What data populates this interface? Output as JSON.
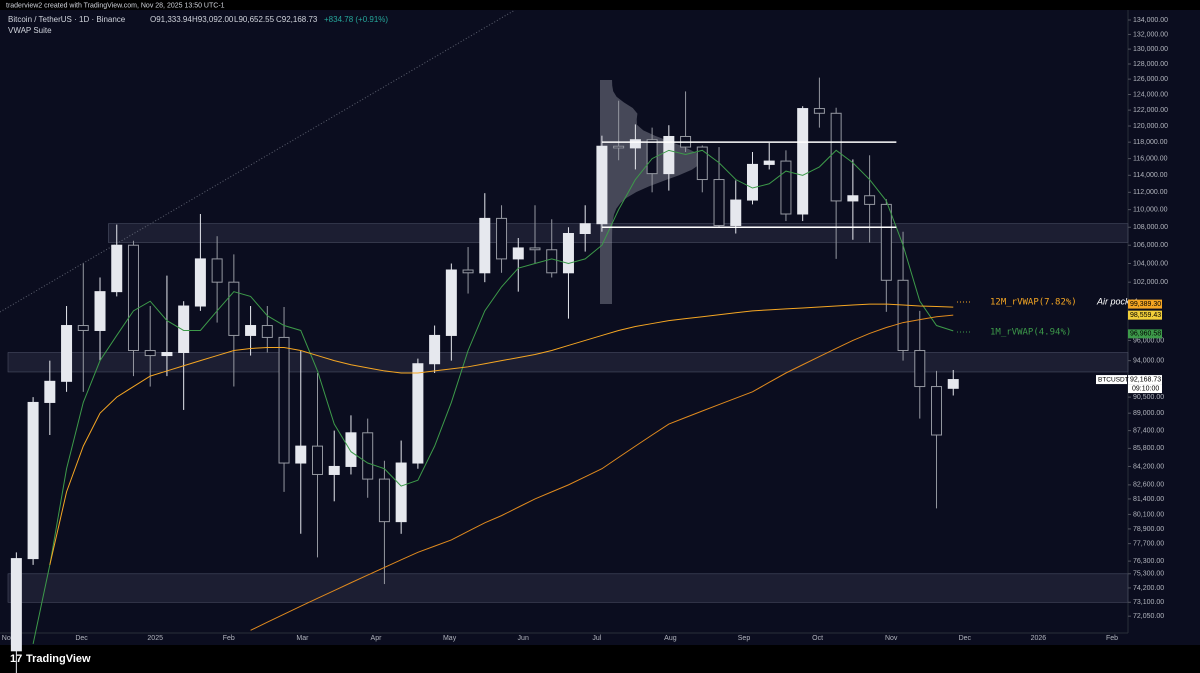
{
  "header": {
    "credit": "traderview2 created with TradingView.com, Nov 28, 2025 13:50 UTC-1",
    "symbol": "Bitcoin / TetherUS · 1D · Binance",
    "ohlc": [
      "O91,333.94",
      "H93,092.00",
      "L90,652.55",
      "C92,168.73",
      "+834.78 (+0.91%)"
    ],
    "indicator": "VWAP Suite"
  },
  "footer": {
    "logo": "TradingView"
  },
  "chart_data": {
    "type": "candlestick",
    "log_scale": true,
    "ylim": [
      70800,
      135400
    ],
    "up_color": "#e6e8ee",
    "down_color": "#9598a1",
    "yticks": [
      {
        "value": 134000,
        "label": "134,000.00"
      },
      {
        "value": 132000,
        "label": "132,000.00"
      },
      {
        "value": 130000,
        "label": "130,000.00"
      },
      {
        "value": 128000,
        "label": "128,000.00"
      },
      {
        "value": 126000,
        "label": "126,000.00"
      },
      {
        "value": 124000,
        "label": "124,000.00"
      },
      {
        "value": 122000,
        "label": "122,000.00"
      },
      {
        "value": 120000,
        "label": "120,000.00"
      },
      {
        "value": 118000,
        "label": "118,000.00"
      },
      {
        "value": 116000,
        "label": "116,000.00"
      },
      {
        "value": 114000,
        "label": "114,000.00"
      },
      {
        "value": 112000,
        "label": "112,000.00"
      },
      {
        "value": 110000,
        "label": "110,000.00"
      },
      {
        "value": 108000,
        "label": "108,000.00"
      },
      {
        "value": 106000,
        "label": "106,000.00"
      },
      {
        "value": 104000,
        "label": "104,000.00"
      },
      {
        "value": 102000,
        "label": "102,000.00"
      },
      {
        "value": 96000,
        "label": "96,000.00"
      },
      {
        "value": 94000,
        "label": "94,000.00"
      },
      {
        "value": 90500,
        "label": "90,500.00"
      },
      {
        "value": 89000,
        "label": "89,000.00"
      },
      {
        "value": 87400,
        "label": "87,400.00"
      },
      {
        "value": 85800,
        "label": "85,800.00"
      },
      {
        "value": 84200,
        "label": "84,200.00"
      },
      {
        "value": 82600,
        "label": "82,600.00"
      },
      {
        "value": 81400,
        "label": "81,400.00"
      },
      {
        "value": 80100,
        "label": "80,100.00"
      },
      {
        "value": 78900,
        "label": "78,900.00"
      },
      {
        "value": 77700,
        "label": "77,700.00"
      },
      {
        "value": 76300,
        "label": "76,300.00"
      },
      {
        "value": 75300,
        "label": "75,300.00"
      },
      {
        "value": 74200,
        "label": "74,200.00"
      },
      {
        "value": 73100,
        "label": "73,100.00"
      },
      {
        "value": 72050,
        "label": "72,050.00"
      }
    ],
    "xticks": [
      "Nov",
      "Dec",
      "2025",
      "Feb",
      "Mar",
      "Apr",
      "May",
      "Jun",
      "Jul",
      "Aug",
      "Sep",
      "Oct",
      "Nov",
      "Dec",
      "2026",
      "Feb"
    ],
    "candles": [
      [
        69500,
        77000,
        66800,
        76500
      ],
      [
        76500,
        90500,
        76000,
        90000
      ],
      [
        90000,
        94000,
        87000,
        92000
      ],
      [
        92000,
        99500,
        91000,
        97500
      ],
      [
        97500,
        104000,
        91000,
        97000
      ],
      [
        97000,
        102500,
        94000,
        101000
      ],
      [
        101000,
        108300,
        100500,
        106000
      ],
      [
        106000,
        106500,
        92500,
        95000
      ],
      [
        95000,
        99500,
        91500,
        94500
      ],
      [
        94500,
        102700,
        92500,
        94800
      ],
      [
        94800,
        100000,
        89300,
        99500
      ],
      [
        99500,
        109500,
        99000,
        104500
      ],
      [
        104500,
        107000,
        97800,
        102000
      ],
      [
        102000,
        105000,
        91500,
        96500
      ],
      [
        96500,
        99500,
        94500,
        97500
      ],
      [
        97500,
        99500,
        94800,
        96300
      ],
      [
        96300,
        99400,
        82000,
        84500
      ],
      [
        84500,
        95000,
        78500,
        86000
      ],
      [
        86000,
        92800,
        76600,
        83500
      ],
      [
        83500,
        87400,
        81200,
        84200
      ],
      [
        84200,
        88800,
        83500,
        87200
      ],
      [
        87200,
        88500,
        81500,
        83100
      ],
      [
        83100,
        84700,
        74500,
        79500
      ],
      [
        79500,
        86500,
        78500,
        84500
      ],
      [
        84500,
        94200,
        84000,
        93700
      ],
      [
        93700,
        97500,
        92800,
        96500
      ],
      [
        96500,
        104000,
        94000,
        103300
      ],
      [
        103300,
        105800,
        100800,
        103000
      ],
      [
        103000,
        111900,
        102000,
        109000
      ],
      [
        109000,
        110500,
        103000,
        104500
      ],
      [
        104500,
        106800,
        101000,
        105700
      ],
      [
        105700,
        110500,
        104000,
        105500
      ],
      [
        105500,
        108900,
        102500,
        103000
      ],
      [
        103000,
        108000,
        98200,
        107300
      ],
      [
        107300,
        110500,
        105300,
        108400
      ],
      [
        108400,
        118800,
        107500,
        117500
      ],
      [
        117500,
        123200,
        115800,
        117300
      ],
      [
        117300,
        120200,
        114700,
        118300
      ],
      [
        118300,
        119800,
        112000,
        114200
      ],
      [
        114200,
        120100,
        112200,
        118700
      ],
      [
        118700,
        124400,
        116800,
        117400
      ],
      [
        117400,
        117600,
        112000,
        113500
      ],
      [
        113500,
        117400,
        108000,
        108200
      ],
      [
        108200,
        113400,
        107300,
        111100
      ],
      [
        111100,
        116800,
        110600,
        115300
      ],
      [
        115300,
        117900,
        114700,
        115700
      ],
      [
        115700,
        117000,
        108700,
        109500
      ],
      [
        109500,
        122500,
        108700,
        122200
      ],
      [
        122200,
        126200,
        119800,
        121600
      ],
      [
        121600,
        122300,
        104500,
        111000
      ],
      [
        111000,
        115900,
        106600,
        111600
      ],
      [
        111600,
        116400,
        106300,
        110600
      ],
      [
        110600,
        111200,
        98900,
        102200
      ],
      [
        102200,
        107500,
        94000,
        95000
      ],
      [
        95000,
        99000,
        88500,
        91500
      ],
      [
        91500,
        93000,
        80600,
        87000
      ],
      [
        91333.94,
        93092,
        90652.55,
        92168.73
      ]
    ],
    "series": [
      {
        "name": "1M_rVWAP(4.94%)",
        "color": "#3d9a4a",
        "values": [
          null,
          70000,
          76000,
          84000,
          90000,
          94000,
          96500,
          99000,
          100000,
          98000,
          97000,
          97000,
          99000,
          101000,
          100500,
          98500,
          97500,
          97000,
          93000,
          88000,
          85500,
          84500,
          84000,
          82500,
          83000,
          86000,
          90000,
          95000,
          99000,
          101500,
          103500,
          104000,
          104500,
          104000,
          104500,
          106000,
          110000,
          113500,
          116000,
          117000,
          116500,
          117000,
          115500,
          113500,
          112500,
          113000,
          114500,
          114000,
          115000,
          117000,
          115500,
          113500,
          111000,
          106000,
          100000,
          97500,
          96960.58
        ]
      },
      {
        "name": "12M_rVWAP(7.82%)",
        "color": "#f5a623",
        "values": [
          null,
          null,
          76000,
          82000,
          86000,
          89000,
          90500,
          91500,
          92500,
          93000,
          93500,
          94000,
          94500,
          95000,
          95200,
          95300,
          95300,
          95000,
          94500,
          94000,
          93600,
          93300,
          93000,
          92800,
          92800,
          93000,
          93200,
          93400,
          93700,
          94000,
          94300,
          94600,
          95000,
          95500,
          96000,
          96500,
          97000,
          97400,
          97700,
          98000,
          98200,
          98400,
          98600,
          98800,
          99000,
          99100,
          99200,
          99300,
          99400,
          99500,
          99600,
          99700,
          99700,
          99600,
          99500,
          99450,
          99389.3
        ]
      },
      {
        "name": "Air pocket",
        "color": "#e08a1e",
        "values": [
          null,
          null,
          null,
          null,
          null,
          null,
          null,
          null,
          null,
          null,
          null,
          null,
          null,
          null,
          71000,
          71600,
          72200,
          72800,
          73400,
          74000,
          74600,
          75200,
          75800,
          76400,
          77000,
          77500,
          78000,
          78700,
          79400,
          80000,
          80700,
          81400,
          82000,
          82600,
          83300,
          84000,
          85000,
          86000,
          87000,
          88000,
          88600,
          89200,
          89800,
          90400,
          91000,
          91900,
          92800,
          93600,
          94400,
          95200,
          96000,
          96700,
          97300,
          97800,
          98100,
          98400,
          98559.43
        ]
      }
    ],
    "zones": [
      {
        "start": 6,
        "low": 106300,
        "high": 108400
      },
      {
        "start": 0,
        "low": 92900,
        "high": 94800
      },
      {
        "start": 0,
        "low": 73100,
        "high": 75300
      }
    ],
    "levels": [
      {
        "start": 35,
        "end": 52.6,
        "value": 118000
      },
      {
        "start": 35,
        "end": 52.6,
        "value": 108000
      }
    ],
    "price_labels": [
      {
        "value": 99389.3,
        "label": "99,389.30",
        "color": "#f5a623"
      },
      {
        "value": 98559.43,
        "label": "98,559.43",
        "color": "#f2cf3a"
      },
      {
        "value": 96960.58,
        "label": "96,960.58",
        "color": "#3d9a4a"
      },
      {
        "value": 92168.73,
        "label": "92,168.73",
        "color": "#ffffff"
      }
    ],
    "countdown": "09:10:00",
    "ticker": "BTCUSDT"
  }
}
